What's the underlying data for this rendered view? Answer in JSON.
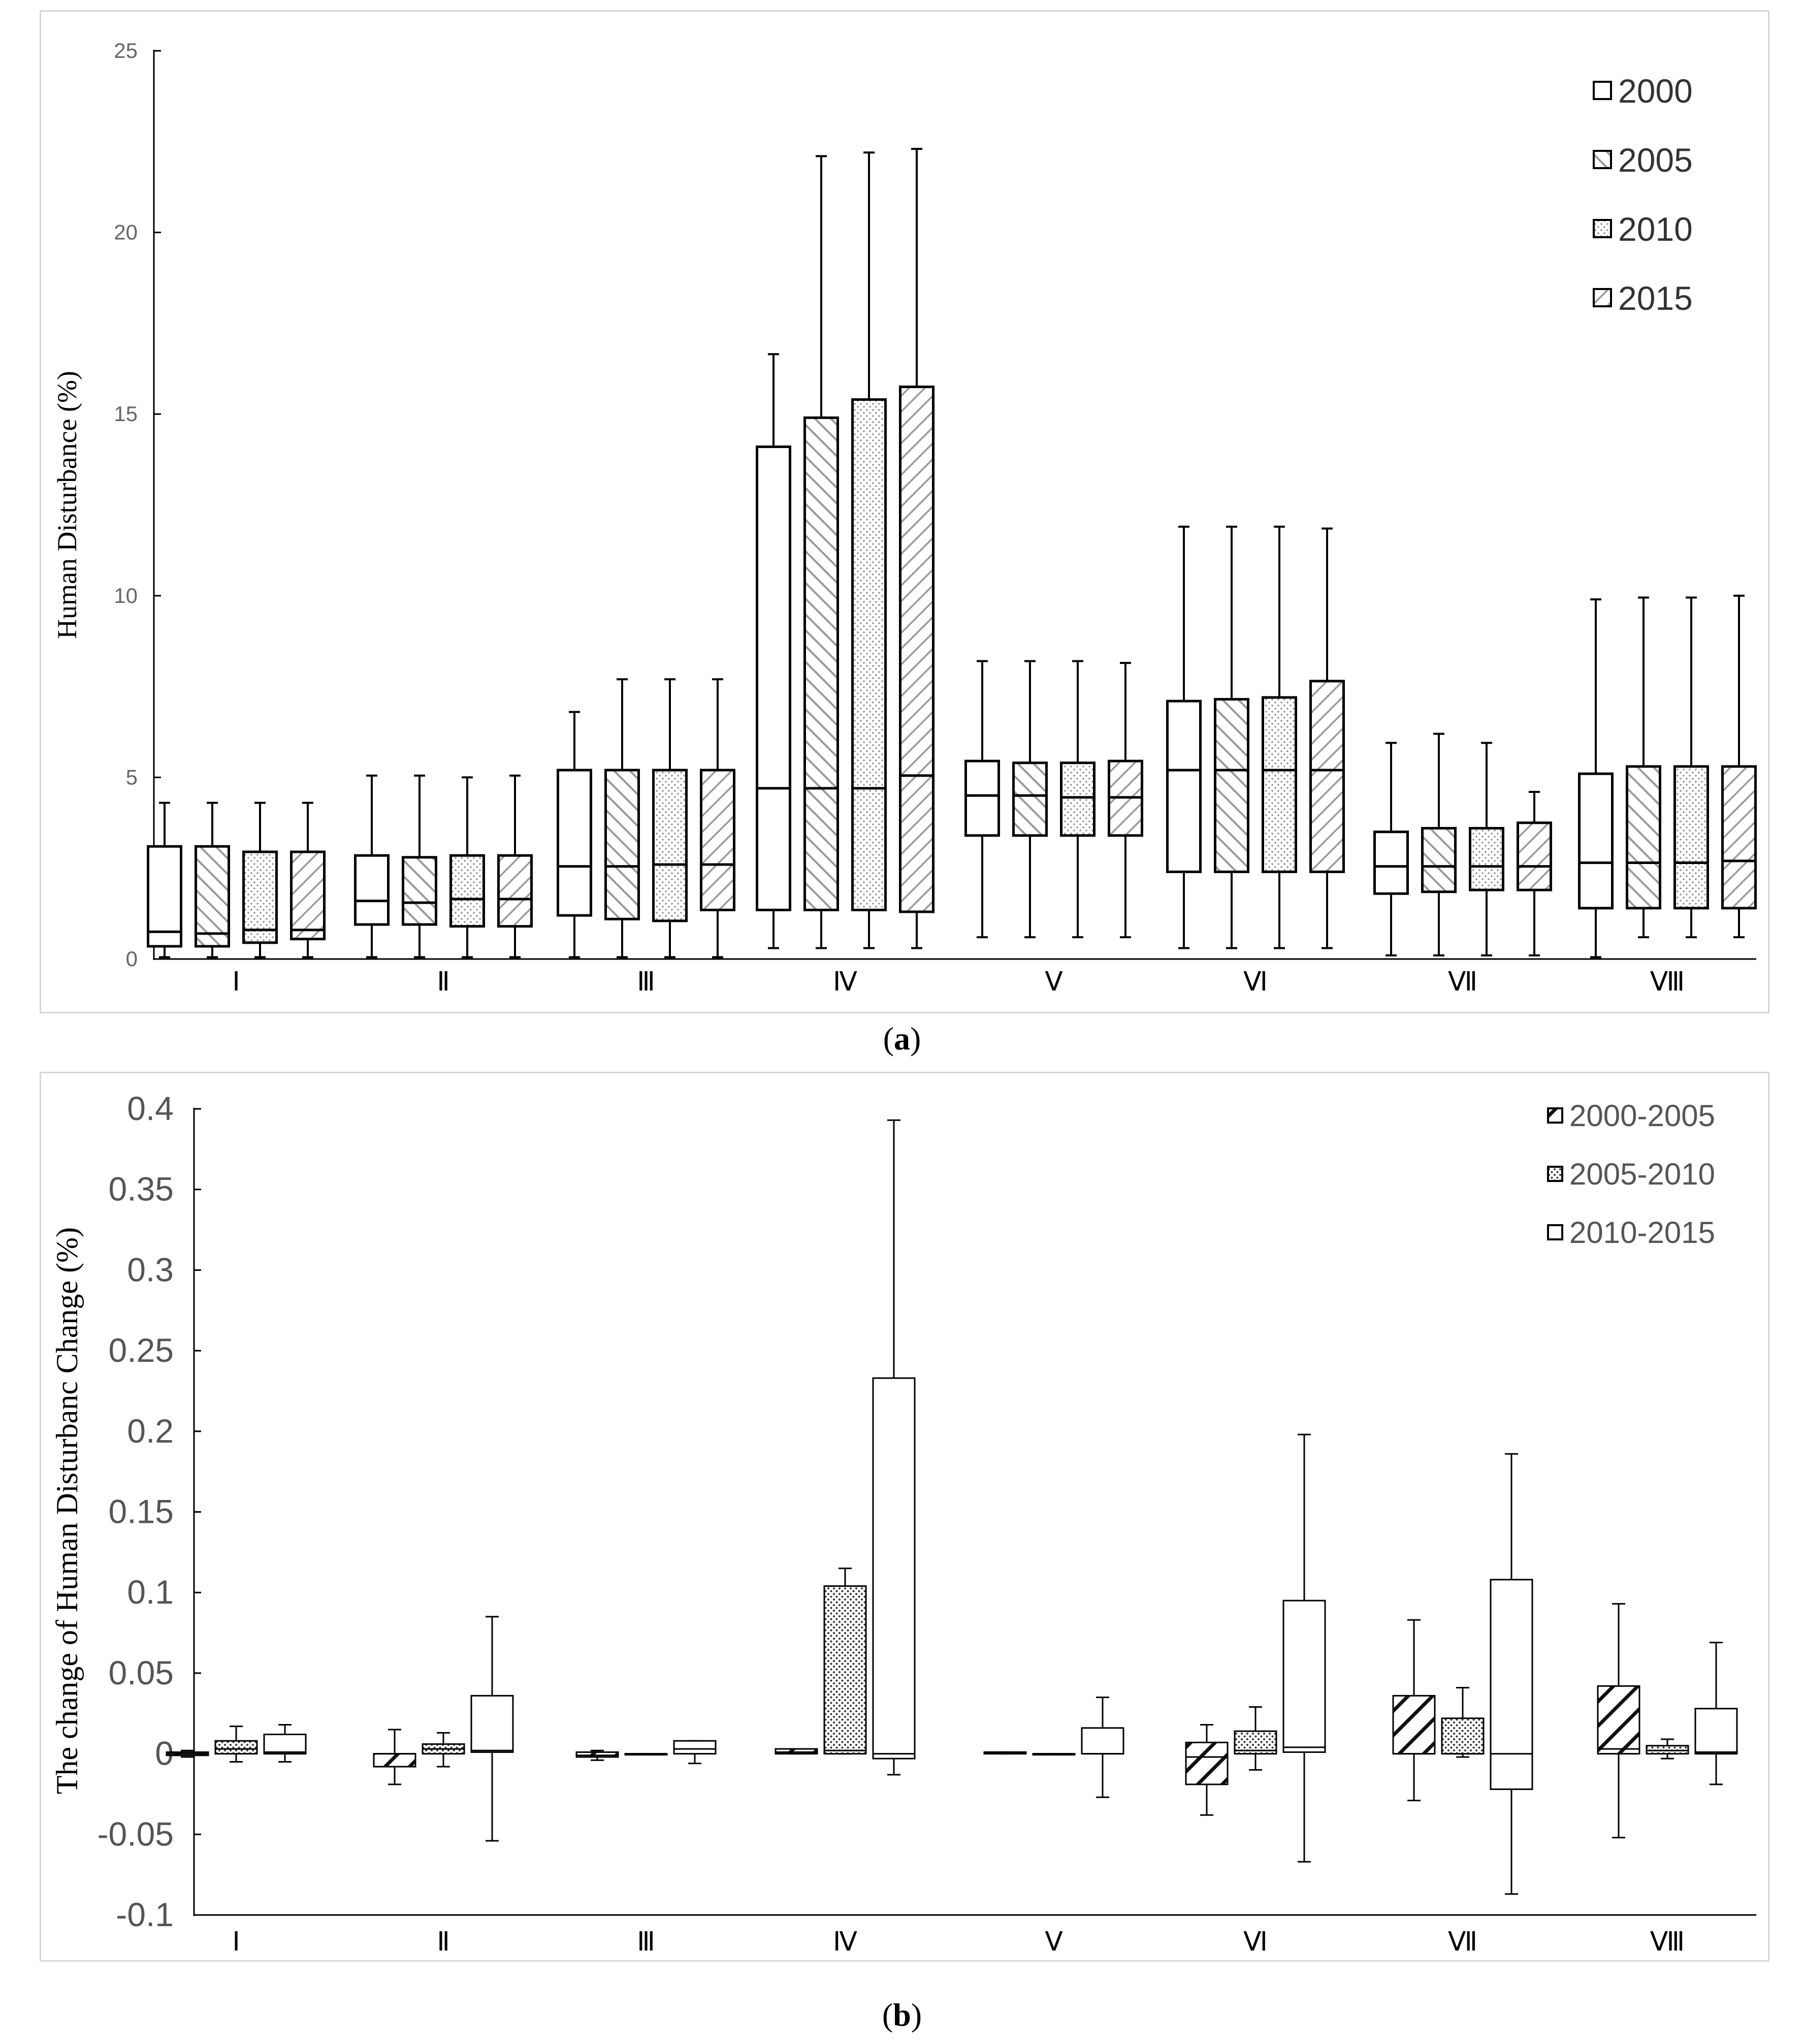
{
  "chart_data": [
    {
      "panel": "a",
      "type": "box",
      "caption_letter": "a",
      "ylabel": "Human Disturbance (%)",
      "ylim": [
        0,
        25
      ],
      "yticks": [
        "0",
        "5",
        "10",
        "15",
        "20",
        "25"
      ],
      "categories": [
        "Ⅰ",
        "Ⅱ",
        "Ⅲ",
        "Ⅳ",
        "Ⅴ",
        "Ⅵ",
        "Ⅶ",
        "Ⅷ"
      ],
      "legend_position": "top-right",
      "series": [
        {
          "name": "2000",
          "pattern": "blank",
          "boxes": [
            [
              0.05,
              0.35,
              0.75,
              3.1,
              4.3
            ],
            [
              0.05,
              0.95,
              1.6,
              2.85,
              5.05
            ],
            [
              0.05,
              1.2,
              2.55,
              5.2,
              6.8
            ],
            [
              0.3,
              1.35,
              4.7,
              14.1,
              16.65
            ],
            [
              0.6,
              3.4,
              4.5,
              5.45,
              8.2
            ],
            [
              0.3,
              2.4,
              5.2,
              7.1,
              11.9
            ],
            [
              0.1,
              1.8,
              2.55,
              3.5,
              5.95
            ],
            [
              0.05,
              1.4,
              2.65,
              5.1,
              9.9
            ]
          ]
        },
        {
          "name": "2005",
          "pattern": "hatch-forward",
          "boxes": [
            [
              0.05,
              0.35,
              0.7,
              3.1,
              4.3
            ],
            [
              0.05,
              0.95,
              1.55,
              2.8,
              5.05
            ],
            [
              0.05,
              1.1,
              2.55,
              5.2,
              7.7
            ],
            [
              0.3,
              1.35,
              4.7,
              14.9,
              22.1
            ],
            [
              0.6,
              3.4,
              4.5,
              5.4,
              8.2
            ],
            [
              0.3,
              2.4,
              5.2,
              7.15,
              11.9
            ],
            [
              0.1,
              1.85,
              2.55,
              3.6,
              6.2
            ],
            [
              0.6,
              1.4,
              2.65,
              5.3,
              9.95
            ]
          ]
        },
        {
          "name": "2010",
          "pattern": "dots",
          "boxes": [
            [
              0.05,
              0.45,
              0.8,
              2.95,
              4.3
            ],
            [
              0.05,
              0.9,
              1.65,
              2.85,
              5.0
            ],
            [
              0.05,
              1.05,
              2.6,
              5.2,
              7.7
            ],
            [
              0.3,
              1.35,
              4.7,
              15.4,
              22.2
            ],
            [
              0.6,
              3.4,
              4.45,
              5.4,
              8.2
            ],
            [
              0.3,
              2.4,
              5.2,
              7.2,
              11.9
            ],
            [
              0.1,
              1.9,
              2.55,
              3.6,
              5.95
            ],
            [
              0.6,
              1.4,
              2.65,
              5.3,
              9.95
            ]
          ]
        },
        {
          "name": "2015",
          "pattern": "hatch-back",
          "boxes": [
            [
              0.05,
              0.55,
              0.8,
              2.95,
              4.3
            ],
            [
              0.05,
              0.9,
              1.65,
              2.85,
              5.05
            ],
            [
              0.05,
              1.35,
              2.6,
              5.2,
              7.7
            ],
            [
              0.3,
              1.3,
              5.05,
              15.75,
              22.3
            ],
            [
              0.6,
              3.4,
              4.45,
              5.45,
              8.15
            ],
            [
              0.3,
              2.4,
              5.2,
              7.65,
              11.85
            ],
            [
              0.1,
              1.9,
              2.55,
              3.75,
              4.6
            ],
            [
              0.6,
              1.4,
              2.7,
              5.3,
              10.0
            ]
          ]
        }
      ]
    },
    {
      "panel": "b",
      "type": "box",
      "caption_letter": "b",
      "ylabel": "The change of Human Disturbanc Change (%)",
      "ylim": [
        -0.1,
        0.4
      ],
      "yticks": [
        "-0.1",
        "-0.05",
        "0",
        "0.05",
        "0.1",
        "0.15",
        "0.2",
        "0.25",
        "0.3",
        "0.35",
        "0.4"
      ],
      "categories": [
        "Ⅰ",
        "Ⅱ",
        "Ⅲ",
        "Ⅳ",
        "Ⅴ",
        "Ⅵ",
        "Ⅶ",
        "Ⅷ"
      ],
      "legend_position": "top-right",
      "series": [
        {
          "name": "2000-2005",
          "pattern": "hatch-bold",
          "boxes": [
            [
              -0.002,
              -0.001,
              0.0,
              0.001,
              0.002
            ],
            [
              -0.019,
              -0.008,
              0.0,
              0.0,
              0.015
            ],
            [
              -0.004,
              -0.002,
              -0.001,
              0.001,
              0.002
            ],
            [
              0.0,
              0.0,
              0.001,
              0.003,
              0.003
            ],
            [
              0.0,
              0.0,
              0.001,
              0.001,
              0.001
            ],
            [
              -0.038,
              -0.019,
              -0.002,
              0.007,
              0.018
            ],
            [
              -0.029,
              0.0,
              0.0,
              0.036,
              0.083
            ],
            [
              -0.052,
              0.0,
              0.003,
              0.042,
              0.093
            ]
          ]
        },
        {
          "name": "2005-2010",
          "pattern": "dots",
          "boxes": [
            [
              -0.005,
              0.0,
              0.003,
              0.008,
              0.017
            ],
            [
              -0.008,
              0.0,
              0.003,
              0.006,
              0.013
            ],
            [
              0.0,
              0.0,
              0.0,
              0.0,
              0.0
            ],
            [
              0.0,
              0.0,
              0.002,
              0.104,
              0.115
            ],
            [
              0.0,
              0.0,
              0.0,
              0.0,
              0.0
            ],
            [
              -0.01,
              0.0,
              0.002,
              0.014,
              0.029
            ],
            [
              -0.002,
              0.0,
              0.0,
              0.022,
              0.041
            ],
            [
              -0.003,
              0.0,
              0.002,
              0.005,
              0.009
            ]
          ]
        },
        {
          "name": "2010-2015",
          "pattern": "blank",
          "boxes": [
            [
              -0.005,
              0.0,
              0.001,
              0.012,
              0.018
            ],
            [
              -0.054,
              0.001,
              0.002,
              0.036,
              0.085
            ],
            [
              -0.006,
              0.0,
              0.003,
              0.008,
              0.008
            ],
            [
              -0.013,
              -0.003,
              0.0,
              0.233,
              0.393
            ],
            [
              -0.027,
              0.0,
              0.0,
              0.016,
              0.035
            ],
            [
              -0.067,
              0.001,
              0.004,
              0.095,
              0.198
            ],
            [
              -0.087,
              -0.022,
              0.0,
              0.108,
              0.186
            ],
            [
              -0.019,
              0.0,
              0.001,
              0.028,
              0.069
            ]
          ]
        }
      ]
    }
  ]
}
